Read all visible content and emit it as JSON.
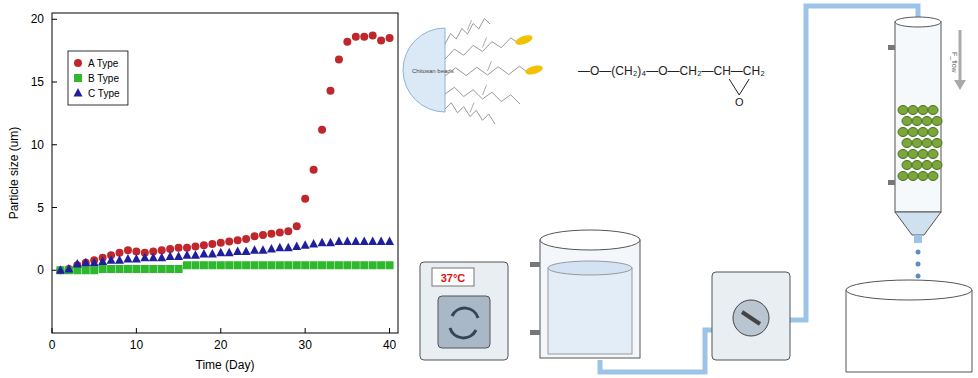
{
  "chart_data": {
    "type": "scatter",
    "x_label": "Time (Day)",
    "y_label": "Particle size (um)",
    "x": [
      1,
      2,
      3,
      4,
      5,
      6,
      7,
      8,
      9,
      10,
      11,
      12,
      13,
      14,
      15,
      16,
      17,
      18,
      19,
      20,
      21,
      22,
      23,
      24,
      25,
      26,
      27,
      28,
      29,
      30,
      31,
      32,
      33,
      34,
      35,
      36,
      37,
      38,
      39,
      40
    ],
    "series": [
      {
        "name": "A Type",
        "color": "#c0272d",
        "marker": "circle",
        "values": [
          0,
          0.1,
          0.4,
          0.6,
          0.8,
          1.0,
          1.2,
          1.4,
          1.6,
          1.5,
          1.4,
          1.5,
          1.6,
          1.7,
          1.8,
          1.8,
          1.9,
          2.0,
          2.1,
          2.2,
          2.3,
          2.4,
          2.5,
          2.7,
          2.8,
          2.9,
          3.0,
          3.1,
          3.5,
          5.7,
          8.0,
          11.2,
          14.3,
          16.8,
          18.2,
          18.6,
          18.6,
          18.7,
          18.3,
          18.5
        ]
      },
      {
        "name": "B Type",
        "color": "#2eb82e",
        "marker": "square",
        "values": [
          0,
          0,
          0,
          0,
          0,
          0.1,
          0.1,
          0.1,
          0.1,
          0.1,
          0.1,
          0.1,
          0.1,
          0.1,
          0.1,
          0.4,
          0.4,
          0.4,
          0.4,
          0.4,
          0.4,
          0.4,
          0.4,
          0.4,
          0.4,
          0.4,
          0.4,
          0.4,
          0.4,
          0.4,
          0.4,
          0.4,
          0.4,
          0.4,
          0.4,
          0.4,
          0.4,
          0.4,
          0.4,
          0.4
        ]
      },
      {
        "name": "C Type",
        "color": "#1f1f9e",
        "marker": "triangle",
        "values": [
          0,
          0.1,
          0.5,
          0.6,
          0.6,
          0.7,
          0.8,
          0.8,
          0.9,
          0.9,
          1.0,
          1.0,
          1.0,
          1.1,
          1.1,
          1.2,
          1.2,
          1.3,
          1.3,
          1.4,
          1.4,
          1.5,
          1.5,
          1.6,
          1.6,
          1.7,
          1.8,
          1.8,
          1.9,
          2.0,
          2.1,
          2.2,
          2.2,
          2.3,
          2.3,
          2.3,
          2.3,
          2.3,
          2.3,
          2.3
        ]
      }
    ],
    "xlim": [
      0,
      41
    ],
    "xticks": [
      0,
      10,
      20,
      30,
      40
    ],
    "ylim": [
      -5,
      20.5
    ],
    "yticks": [
      0,
      5,
      10,
      15,
      20
    ],
    "legend": "upper left",
    "grid": false
  },
  "diagram": {
    "bead_label": "Chitosan beads",
    "formula": "—O—(CH₂)₄—O—CH₂—CH—CH₂",
    "epoxide_oxygen": "O",
    "circulator_temperature": "37°C",
    "flow_label": "F_flow"
  }
}
